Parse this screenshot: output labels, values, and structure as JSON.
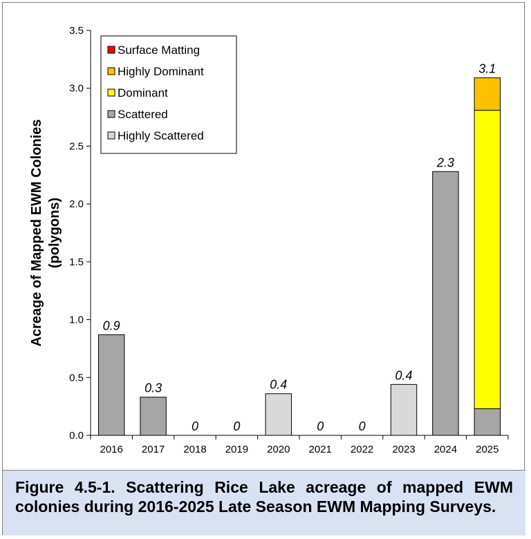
{
  "chart_data": {
    "type": "bar",
    "stacked": true,
    "title": "",
    "xlabel": "",
    "ylabel": "Acreage of Mapped EWM Colonies (polygons)",
    "ylabel_lines": [
      "Acreage of Mapped EWM Colonies",
      "(polygons)"
    ],
    "ylim": [
      0,
      3.5
    ],
    "yticks": [
      "0.0",
      "0.5",
      "1.0",
      "1.5",
      "2.0",
      "2.5",
      "3.0",
      "3.5"
    ],
    "grid": false,
    "legend_position": "top-left",
    "categories": [
      "2016",
      "2017",
      "2018",
      "2019",
      "2020",
      "2021",
      "2022",
      "2023",
      "2024",
      "2025"
    ],
    "series": [
      {
        "name": "Highly Scattered",
        "color": "#d9d9d9",
        "values": [
          0,
          0,
          0,
          0,
          0.36,
          0,
          0,
          0.44,
          0,
          0
        ]
      },
      {
        "name": "Scattered",
        "color": "#a6a6a6",
        "values": [
          0.87,
          0.33,
          0,
          0,
          0,
          0,
          0,
          0,
          2.28,
          0.23
        ]
      },
      {
        "name": "Dominant",
        "color": "#ffff00",
        "values": [
          0,
          0,
          0,
          0,
          0,
          0,
          0,
          0,
          0,
          2.58
        ]
      },
      {
        "name": "Highly Dominant",
        "color": "#ffc000",
        "values": [
          0,
          0,
          0,
          0,
          0,
          0,
          0,
          0,
          0,
          0.28
        ]
      },
      {
        "name": "Surface Matting",
        "color": "#ff0000",
        "values": [
          0,
          0,
          0,
          0,
          0,
          0,
          0,
          0,
          0,
          0
        ]
      }
    ],
    "legend_order": [
      "Surface Matting",
      "Highly Dominant",
      "Dominant",
      "Scattered",
      "Highly Scattered"
    ],
    "total_labels": [
      "0.9",
      "0.3",
      "0",
      "0",
      "0.4",
      "0",
      "0",
      "0.4",
      "2.3",
      "3.1"
    ]
  },
  "caption": "Figure 4.5-1.  Scattering Rice Lake acreage of mapped EWM colonies during 2016-2025 Late Season EWM Mapping Surveys."
}
